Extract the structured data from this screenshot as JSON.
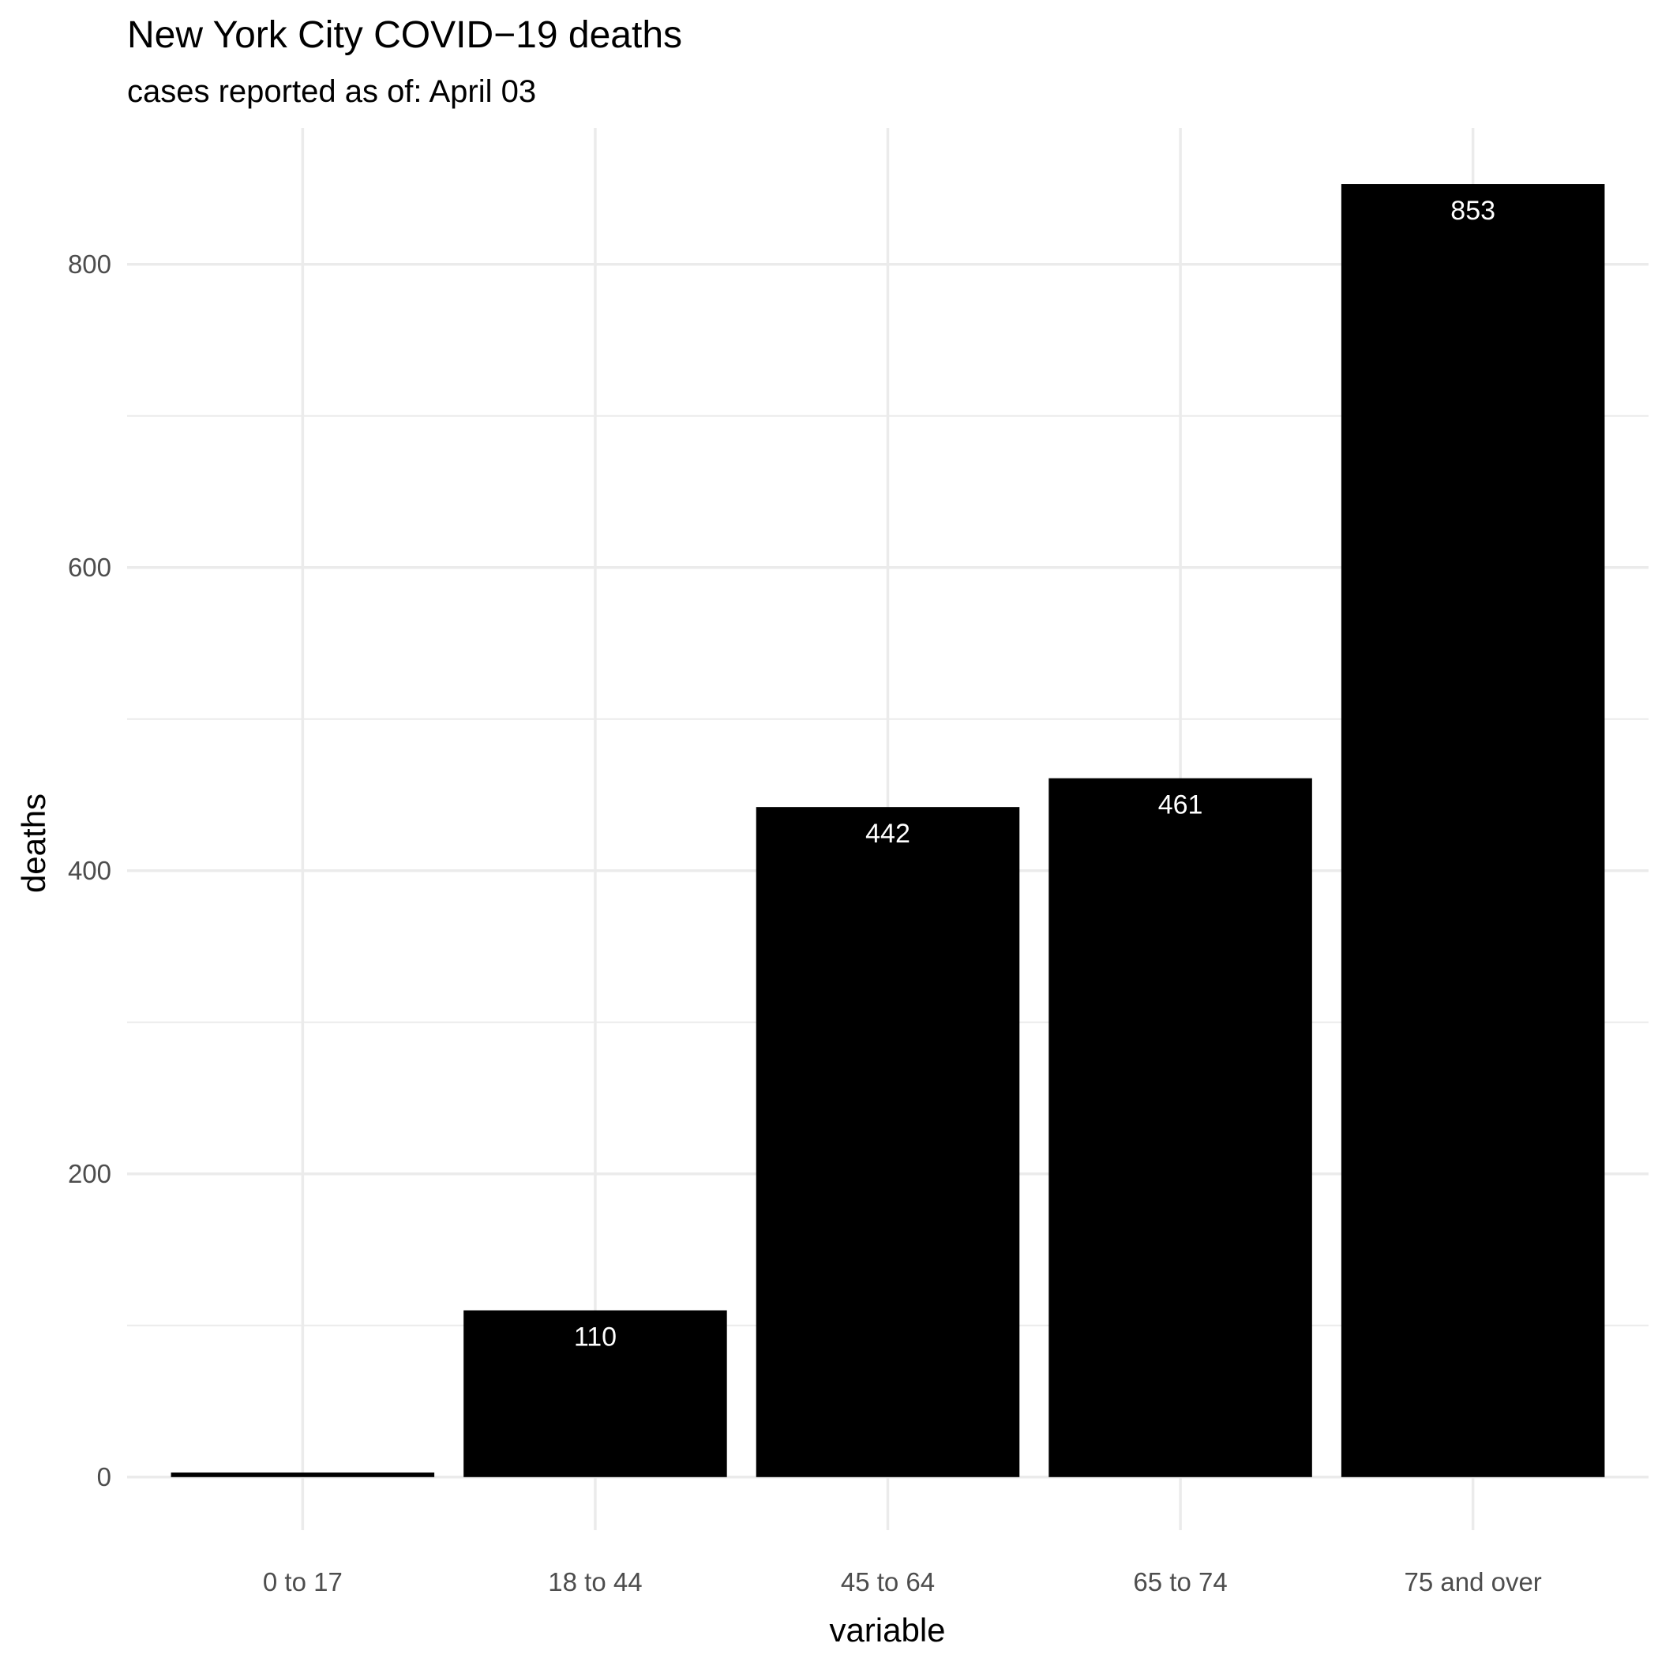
{
  "chart_data": {
    "type": "bar",
    "title": "New York City COVID−19 deaths",
    "subtitle": "cases reported as of: April 03",
    "xlabel": "variable",
    "ylabel": "deaths",
    "categories": [
      "0 to 17",
      "18 to 44",
      "45 to 64",
      "65 to 74",
      "75 and over"
    ],
    "values": [
      3,
      110,
      442,
      461,
      853
    ],
    "data_labels": [
      "",
      "110",
      "442",
      "461",
      "853"
    ],
    "ylim": [
      -35,
      890
    ],
    "yticks": [
      0,
      200,
      400,
      600,
      800
    ],
    "grid": true,
    "legend": "none",
    "colors": {
      "bar": "#000000",
      "bar_label": "#ffffff",
      "grid": "#ebebeb"
    }
  }
}
